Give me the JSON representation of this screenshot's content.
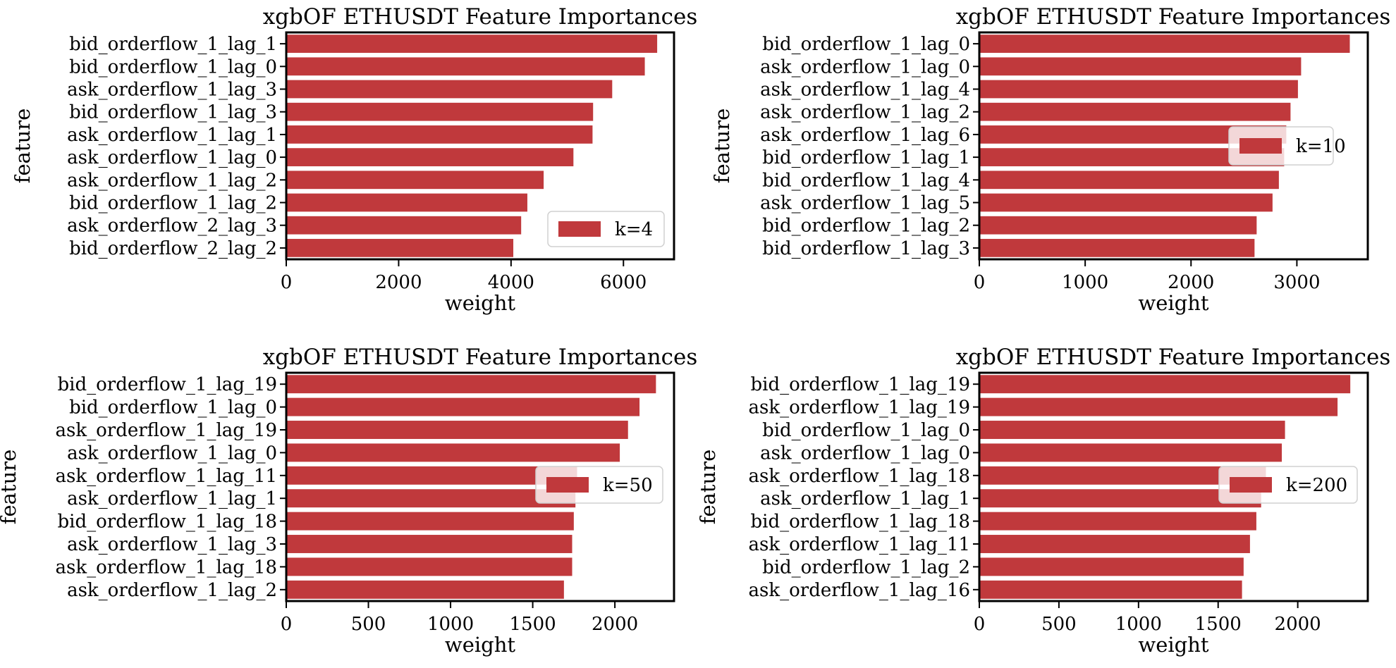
{
  "colors": {
    "bar": "#c0393c",
    "axis": "#000000",
    "legend_face": "#ffffff",
    "legend_edge": "#d0d0d0"
  },
  "chart_data": [
    {
      "type": "bar",
      "orientation": "horizontal",
      "title": "xgbOF ETHUSDT Feature Importances",
      "xlabel": "weight",
      "ylabel": "feature",
      "xlim": [
        0,
        6900
      ],
      "xticks": [
        0,
        2000,
        4000,
        6000
      ],
      "grid": false,
      "legend": {
        "label": "k=4",
        "placement": "lower-right"
      },
      "categories": [
        "bid_orderflow_1_lag_1",
        "bid_orderflow_1_lag_0",
        "ask_orderflow_1_lag_3",
        "bid_orderflow_1_lag_3",
        "ask_orderflow_1_lag_1",
        "ask_orderflow_1_lag_0",
        "ask_orderflow_1_lag_2",
        "bid_orderflow_1_lag_2",
        "ask_orderflow_2_lag_3",
        "bid_orderflow_2_lag_2"
      ],
      "values": [
        6600,
        6380,
        5800,
        5460,
        5450,
        5110,
        4580,
        4290,
        4180,
        4040
      ]
    },
    {
      "type": "bar",
      "orientation": "horizontal",
      "title": "xgbOF ETHUSDT Feature Importances",
      "xlabel": "weight",
      "ylabel": "feature",
      "xlim": [
        0,
        3670
      ],
      "xticks": [
        0,
        1000,
        2000,
        3000
      ],
      "grid": false,
      "legend": {
        "label": "k=10",
        "placement": "center-right"
      },
      "categories": [
        "bid_orderflow_1_lag_0",
        "ask_orderflow_1_lag_0",
        "ask_orderflow_1_lag_4",
        "ask_orderflow_1_lag_2",
        "ask_orderflow_1_lag_6",
        "bid_orderflow_1_lag_1",
        "bid_orderflow_1_lag_4",
        "ask_orderflow_1_lag_5",
        "bid_orderflow_1_lag_2",
        "bid_orderflow_1_lag_3"
      ],
      "values": [
        3500,
        3040,
        3010,
        2940,
        2900,
        2880,
        2830,
        2770,
        2620,
        2600
      ]
    },
    {
      "type": "bar",
      "orientation": "horizontal",
      "title": "xgbOF ETHUSDT Feature Importances",
      "xlabel": "weight",
      "ylabel": "feature",
      "xlim": [
        0,
        2360
      ],
      "xticks": [
        0,
        500,
        1000,
        1500,
        2000
      ],
      "grid": false,
      "legend": {
        "label": "k=50",
        "placement": "center-right"
      },
      "categories": [
        "bid_orderflow_1_lag_19",
        "bid_orderflow_1_lag_0",
        "ask_orderflow_1_lag_19",
        "ask_orderflow_1_lag_0",
        "ask_orderflow_1_lag_11",
        "ask_orderflow_1_lag_1",
        "bid_orderflow_1_lag_18",
        "ask_orderflow_1_lag_3",
        "ask_orderflow_1_lag_18",
        "ask_orderflow_1_lag_2"
      ],
      "values": [
        2250,
        2150,
        2080,
        2030,
        1770,
        1760,
        1750,
        1740,
        1740,
        1690
      ]
    },
    {
      "type": "bar",
      "orientation": "horizontal",
      "title": "xgbOF ETHUSDT Feature Importances",
      "xlabel": "weight",
      "ylabel": "feature",
      "xlim": [
        0,
        2440
      ],
      "xticks": [
        0,
        500,
        1000,
        1500,
        2000
      ],
      "grid": false,
      "legend": {
        "label": "k=200",
        "placement": "center-right"
      },
      "categories": [
        "bid_orderflow_1_lag_19",
        "ask_orderflow_1_lag_19",
        "bid_orderflow_1_lag_0",
        "ask_orderflow_1_lag_0",
        "ask_orderflow_1_lag_18",
        "ask_orderflow_1_lag_1",
        "bid_orderflow_1_lag_18",
        "ask_orderflow_1_lag_11",
        "bid_orderflow_1_lag_2",
        "ask_orderflow_1_lag_16"
      ],
      "values": [
        2330,
        2250,
        1920,
        1900,
        1800,
        1770,
        1740,
        1700,
        1660,
        1650
      ]
    }
  ]
}
